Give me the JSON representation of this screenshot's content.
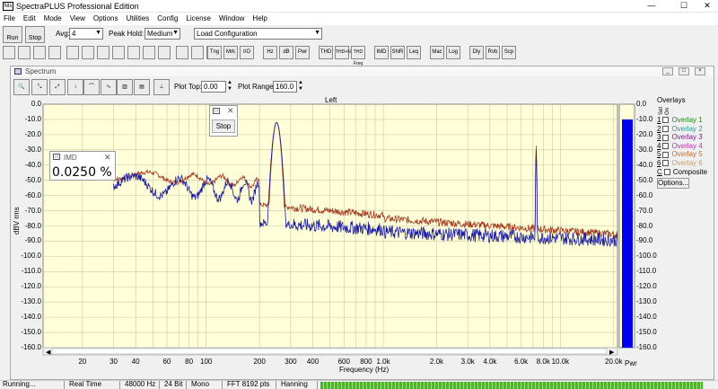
{
  "app": {
    "title": "SpectraPLUS Professional Edition",
    "icon": "Nts"
  },
  "menu": [
    "File",
    "Edit",
    "Mode",
    "View",
    "Options",
    "Utilities",
    "Config",
    "License",
    "Window",
    "Help"
  ],
  "toolbar": {
    "run_label": "Run",
    "stop_label": "Stop",
    "avg_label": "Avg:",
    "avg_value": "4",
    "peak_hold_label": "Peak Hold:",
    "peak_hold_value": "Medium",
    "config_value": "Load Configuration"
  },
  "toolbar2": {
    "buttons": [
      "Tng",
      "Mrk",
      "I/O",
      "Hz",
      "dB",
      "Pwr",
      "THD",
      "THD+N",
      "THD Freq",
      "IMD",
      "SNR",
      "Leq",
      "Mac",
      "Log",
      "Dly",
      "Rvb",
      "Scp"
    ]
  },
  "spectrum": {
    "title": "Spectrum",
    "plot_top_label": "Plot Top:",
    "plot_top_value": "0.00",
    "plot_range_label": "Plot Range:",
    "plot_range_value": "160.0",
    "channel": "Left",
    "ylabel": "dBV rms",
    "xlabel": "Frequency (Hz)",
    "pwr_label": "Pwr",
    "bar_level_db": -10,
    "trace_colors": {
      "left": "#a3391f",
      "right": "#1c1ca0",
      "bar": "#0000ee"
    }
  },
  "imd": {
    "title": "IMD",
    "value": "0.0250 %"
  },
  "stop_popup": {
    "label": "Stop"
  },
  "overlays": {
    "title": "Overlays",
    "col_set": "Set",
    "col_on": "On",
    "items": [
      {
        "num": "1",
        "label": "Overlay 1",
        "color": "#1a8f1a"
      },
      {
        "num": "2",
        "label": "Overlay 2",
        "color": "#2a9a9a"
      },
      {
        "num": "3",
        "label": "Overlay 3",
        "color": "#8a1a8a"
      },
      {
        "num": "4",
        "label": "Overlay 4",
        "color": "#c02cc0"
      },
      {
        "num": "5",
        "label": "Overlay 5",
        "color": "#c86a2a"
      },
      {
        "num": "6",
        "label": "Overlay 6",
        "color": "#c0a06a"
      }
    ],
    "composite_num": "C",
    "composite_label": "Composite",
    "options_label": "Options..."
  },
  "yticks": [
    "0.0",
    "-10.0",
    "-20.0",
    "-30.0",
    "-40.0",
    "-50.0",
    "-60.0",
    "-70.0",
    "-80.0",
    "-90.0",
    "-100.0",
    "-110.0",
    "-120.0",
    "-130.0",
    "-140.0",
    "-150.0",
    "-160.0"
  ],
  "xticks": [
    {
      "f": 20,
      "l": "20"
    },
    {
      "f": 30,
      "l": "30"
    },
    {
      "f": 40,
      "l": "40"
    },
    {
      "f": 60,
      "l": "60"
    },
    {
      "f": 80,
      "l": "80"
    },
    {
      "f": 100,
      "l": "100"
    },
    {
      "f": 200,
      "l": "200"
    },
    {
      "f": 300,
      "l": "300"
    },
    {
      "f": 400,
      "l": "400"
    },
    {
      "f": 600,
      "l": "600"
    },
    {
      "f": 800,
      "l": "800"
    },
    {
      "f": 1000,
      "l": "1.0k"
    },
    {
      "f": 2000,
      "l": "2.0k"
    },
    {
      "f": 3000,
      "l": "3.0k"
    },
    {
      "f": 4000,
      "l": "4.0k"
    },
    {
      "f": 6000,
      "l": "6.0k"
    },
    {
      "f": 8000,
      "l": "8.0k"
    },
    {
      "f": 10000,
      "l": "10.0k"
    },
    {
      "f": 20000,
      "l": "20.0k"
    }
  ],
  "status": {
    "state": "Running...",
    "mode": "Real Time",
    "rate": "48000 Hz",
    "bits": "24 Bit",
    "channels": "Mono",
    "fft": "FFT 8192 pts",
    "window": "Hanning"
  }
}
